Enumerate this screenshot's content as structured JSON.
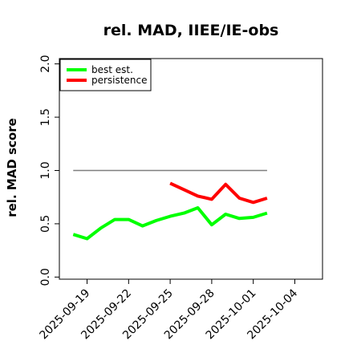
{
  "chart_data": {
    "type": "line",
    "title": "rel. MAD, IIEE/IE-obs",
    "ylabel": "rel. MAD score",
    "xlabel": "",
    "ylim": [
      -0.02,
      2.05
    ],
    "yticks": [
      "0.0",
      "0.5",
      "1.0",
      "1.5",
      "2.0"
    ],
    "xticks": [
      "2025-09-19",
      "2025-09-22",
      "2025-09-25",
      "2025-09-28",
      "2025-10-01",
      "2025-10-04"
    ],
    "xlim": [
      "2025-09-17",
      "2025-10-06"
    ],
    "grid": false,
    "legend_position": "top-left",
    "reference_line": {
      "y": 1.0,
      "x_start": "2025-09-18",
      "x_end": "2025-10-02",
      "color": "#7f7f7f"
    },
    "series": [
      {
        "name": "best est.",
        "color": "#00ff00",
        "x": [
          "2025-09-18",
          "2025-09-19",
          "2025-09-20",
          "2025-09-21",
          "2025-09-22",
          "2025-09-23",
          "2025-09-24",
          "2025-09-25",
          "2025-09-26",
          "2025-09-27",
          "2025-09-28",
          "2025-09-29",
          "2025-09-30",
          "2025-10-01",
          "2025-10-02"
        ],
        "values": [
          0.4,
          0.36,
          0.46,
          0.54,
          0.54,
          0.48,
          0.53,
          0.57,
          0.6,
          0.65,
          0.49,
          0.59,
          0.55,
          0.56,
          0.6
        ]
      },
      {
        "name": "persistence",
        "color": "#ff0000",
        "x": [
          "2025-09-25",
          "2025-09-26",
          "2025-09-27",
          "2025-09-28",
          "2025-09-29",
          "2025-09-30",
          "2025-10-01",
          "2025-10-02"
        ],
        "values": [
          0.88,
          0.82,
          0.76,
          0.73,
          0.87,
          0.74,
          0.7,
          0.74
        ]
      }
    ]
  }
}
